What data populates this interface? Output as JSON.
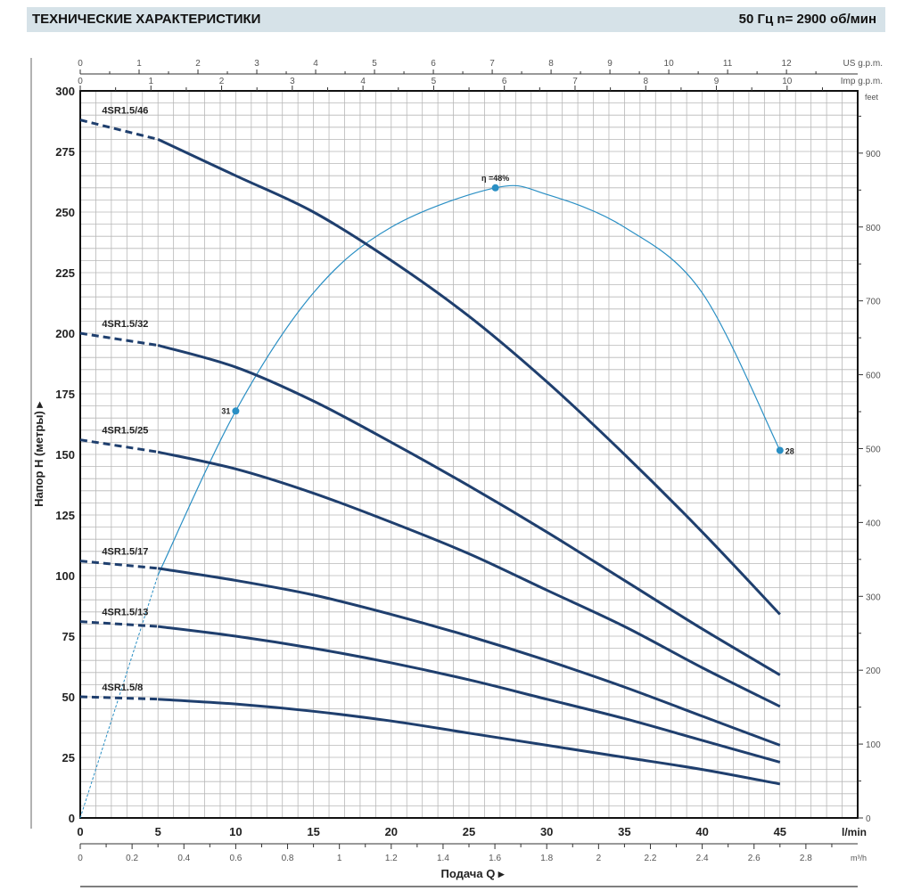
{
  "header": {
    "title": "ТЕХНИЧЕСКИЕ ХАРАКТЕРИСТИКИ",
    "subtitle": "50 Гц   n= 2900  об/мин"
  },
  "chart_data": {
    "type": "line",
    "xlabel": "Подача Q",
    "ylabel": "Напор H (метры)",
    "x_unit": "l/min",
    "xlim": [
      0,
      50
    ],
    "ylim": [
      0,
      300
    ],
    "grid": true,
    "x_ticks": [
      0,
      5,
      10,
      15,
      20,
      25,
      30,
      35,
      40,
      45
    ],
    "y_ticks": [
      0,
      25,
      50,
      75,
      100,
      125,
      150,
      175,
      200,
      225,
      250,
      275,
      300
    ],
    "secondary_axes": {
      "us_gpm": {
        "label": "US g.p.m.",
        "ticks": [
          0,
          1,
          2,
          3,
          4,
          5,
          6,
          7,
          8,
          9,
          10,
          11,
          12
        ]
      },
      "imp_gpm": {
        "label": "Imp g.p.m.",
        "ticks": [
          0,
          1,
          2,
          3,
          4,
          5,
          6,
          7,
          8,
          9,
          10
        ]
      },
      "feet": {
        "label": "feet",
        "ticks": [
          0,
          100,
          200,
          300,
          400,
          500,
          600,
          700,
          800,
          900
        ]
      },
      "m3h": {
        "label": "m³/h",
        "ticks": [
          "0",
          "0.2",
          "0.4",
          "0.6",
          "0.8",
          "1",
          "1.2",
          "1.4",
          "1.6",
          "1.8",
          "2",
          "2.2",
          "2.4",
          "2.6",
          "2.8"
        ]
      }
    },
    "x": [
      0,
      5,
      10,
      15,
      20,
      25,
      30,
      35,
      40,
      45
    ],
    "dashed_until_x": 5,
    "series": [
      {
        "name": "4SR1.5/46",
        "values": [
          288,
          280,
          265,
          250,
          230,
          207,
          180,
          150,
          118,
          84
        ]
      },
      {
        "name": "4SR1.5/32",
        "values": [
          200,
          195,
          186,
          172,
          155,
          137,
          118,
          98,
          78,
          59
        ]
      },
      {
        "name": "4SR1.5/25",
        "values": [
          156,
          151,
          144,
          134,
          122,
          109,
          94,
          79,
          62,
          46
        ]
      },
      {
        "name": "4SR1.5/17",
        "values": [
          106,
          103,
          98,
          92,
          84,
          75,
          65,
          54,
          42,
          30
        ]
      },
      {
        "name": "4SR1.5/13",
        "values": [
          81,
          79,
          75,
          70,
          64,
          57,
          49,
          41,
          32,
          23
        ]
      },
      {
        "name": "4SR1.5/8",
        "values": [
          50,
          49,
          47,
          44,
          40,
          35,
          30,
          25,
          20,
          14
        ]
      }
    ],
    "efficiency": {
      "unit": "%",
      "x": [
        0,
        5,
        10,
        15,
        20,
        26.7,
        30,
        35,
        40,
        45
      ],
      "values": [
        0,
        18.5,
        31,
        40,
        45,
        48,
        47.5,
        45,
        40,
        28
      ],
      "labeled_points": [
        {
          "x": 10,
          "label": "31"
        },
        {
          "x": 26.7,
          "label": "η =48%"
        },
        {
          "x": 45,
          "label": "28"
        }
      ],
      "color": "#2a8fc4"
    },
    "curve_color": "#1f3f6e"
  }
}
